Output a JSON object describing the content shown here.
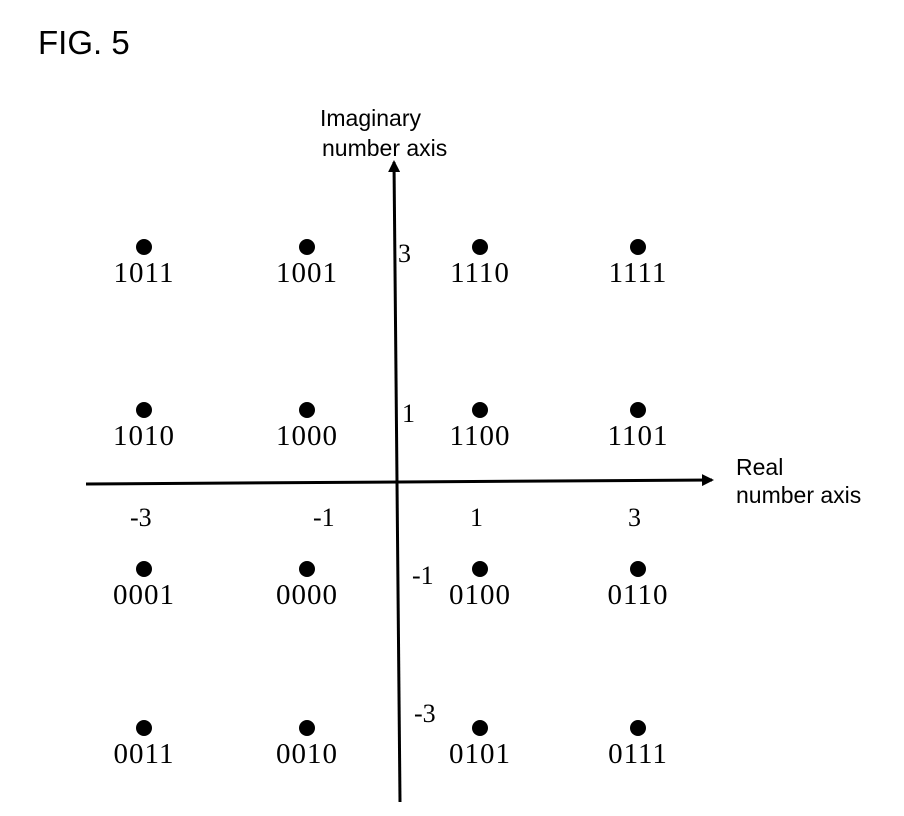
{
  "figure_label": "FIG. 5",
  "axes": {
    "imaginary_label_line1": "Imaginary",
    "imaginary_label_line2": "number axis",
    "real_label_line1": "Real",
    "real_label_line2": "number axis"
  },
  "real_ticks": [
    "-3",
    "-1",
    "1",
    "3"
  ],
  "imag_ticks": [
    "3",
    "1",
    "-1",
    "-3"
  ],
  "constellation": [
    {
      "i": 0,
      "q": 0,
      "code": "1011"
    },
    {
      "i": 1,
      "q": 0,
      "code": "1001"
    },
    {
      "i": 2,
      "q": 0,
      "code": "1110"
    },
    {
      "i": 3,
      "q": 0,
      "code": "1111"
    },
    {
      "i": 0,
      "q": 1,
      "code": "1010"
    },
    {
      "i": 1,
      "q": 1,
      "code": "1000"
    },
    {
      "i": 2,
      "q": 1,
      "code": "1100"
    },
    {
      "i": 3,
      "q": 1,
      "code": "1101"
    },
    {
      "i": 0,
      "q": 2,
      "code": "0001"
    },
    {
      "i": 1,
      "q": 2,
      "code": "0000"
    },
    {
      "i": 2,
      "q": 2,
      "code": "0100"
    },
    {
      "i": 3,
      "q": 2,
      "code": "0110"
    },
    {
      "i": 0,
      "q": 3,
      "code": "0011"
    },
    {
      "i": 1,
      "q": 3,
      "code": "0010"
    },
    {
      "i": 2,
      "q": 3,
      "code": "0101"
    },
    {
      "i": 3,
      "q": 3,
      "code": "0111"
    }
  ]
}
